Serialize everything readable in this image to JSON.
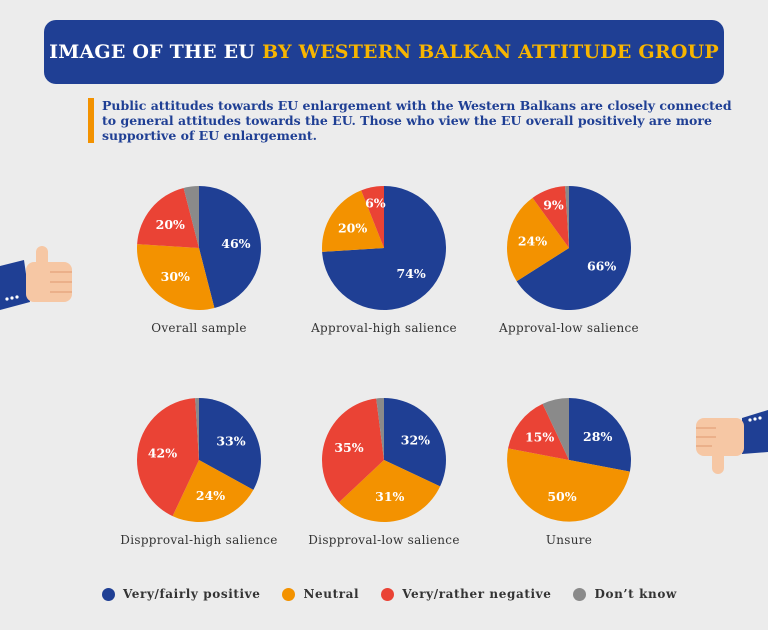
{
  "header": {
    "title_part1": "IMAGE OF THE EU",
    "title_part2": "BY WESTERN BALKAN ATTITUDE GROUP"
  },
  "intro": {
    "text": "Public attitudes towards EU enlargement with the Western Balkans are closely connected to general attitudes towards the EU. Those who view the EU overall positively are more supportive of EU enlargement."
  },
  "colors": {
    "positive": "#1f3f94",
    "neutral": "#f39200",
    "negative": "#ea4335",
    "dont_know": "#8a8a8a",
    "banner": "#1f3f94",
    "banner_highlight": "#f7b500"
  },
  "icons": [
    "thumbs-up-icon",
    "thumbs-down-icon"
  ],
  "legend": [
    {
      "key": "positive",
      "label": "Very/fairly positive"
    },
    {
      "key": "neutral",
      "label": "Neutral"
    },
    {
      "key": "negative",
      "label": "Very/rather negative"
    },
    {
      "key": "dont_know",
      "label": "Don’t know"
    }
  ],
  "chart_data": [
    {
      "type": "pie",
      "title": "Overall sample",
      "categories": [
        "Very/fairly positive",
        "Neutral",
        "Very/rather negative",
        "Don’t know"
      ],
      "values": [
        46,
        30,
        20,
        4
      ],
      "labels": [
        "46%",
        "30%",
        "20%",
        ""
      ]
    },
    {
      "type": "pie",
      "title": "Approval-high salience",
      "categories": [
        "Very/fairly positive",
        "Neutral",
        "Very/rather negative",
        "Don’t know"
      ],
      "values": [
        74,
        20,
        6,
        0
      ],
      "labels": [
        "74%",
        "20%",
        "6%",
        ""
      ]
    },
    {
      "type": "pie",
      "title": "Approval-low salience",
      "categories": [
        "Very/fairly positive",
        "Neutral",
        "Very/rather negative",
        "Don’t know"
      ],
      "values": [
        66,
        24,
        9,
        1
      ],
      "labels": [
        "66%",
        "24%",
        "9%",
        ""
      ]
    },
    {
      "type": "pie",
      "title": "Dispproval-high salience",
      "categories": [
        "Very/fairly positive",
        "Neutral",
        "Very/rather negative",
        "Don’t know"
      ],
      "values": [
        33,
        24,
        42,
        1
      ],
      "labels": [
        "33%",
        "24%",
        "42%",
        ""
      ]
    },
    {
      "type": "pie",
      "title": "Dispproval-low salience",
      "categories": [
        "Very/fairly positive",
        "Neutral",
        "Very/rather negative",
        "Don’t know"
      ],
      "values": [
        32,
        31,
        35,
        2
      ],
      "labels": [
        "32%",
        "31%",
        "35%",
        ""
      ]
    },
    {
      "type": "pie",
      "title": "Unsure",
      "categories": [
        "Very/fairly positive",
        "Neutral",
        "Very/rather negative",
        "Don’t know"
      ],
      "values": [
        28,
        50,
        15,
        7
      ],
      "labels": [
        "28%",
        "50%",
        "15%",
        ""
      ]
    }
  ]
}
